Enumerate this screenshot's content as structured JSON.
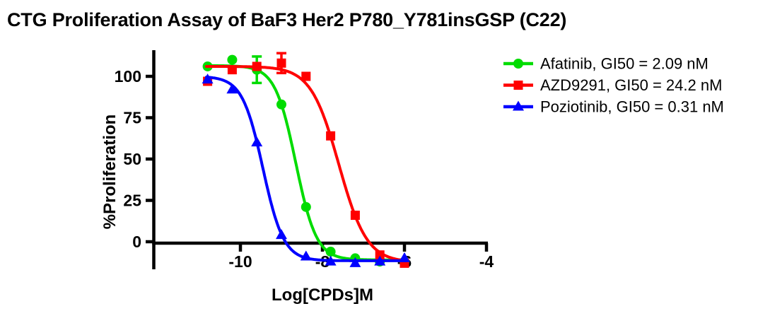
{
  "page": {
    "background": "#ffffff",
    "text_color": "#000000"
  },
  "chart_data": {
    "type": "line",
    "title": "CTG Proliferation Assay of BaF3 Her2 P780_Y781insGSP (C22)",
    "xlabel": "Log[CPDs]M",
    "ylabel": "%Proliferation",
    "grid": false,
    "legend_position": "top-right",
    "axis_color": "#000000",
    "xlim": [
      -12.2,
      -4
    ],
    "ylim": [
      -17,
      116
    ],
    "x_ticks": [
      "-10",
      "-8",
      "-6",
      "-4"
    ],
    "x_tick_values": [
      -10,
      -8,
      -6,
      -4
    ],
    "y_ticks": [
      "0",
      "25",
      "50",
      "75",
      "100"
    ],
    "y_tick_values": [
      0,
      25,
      50,
      75,
      100
    ],
    "x": [
      -10.8,
      -10.2,
      -9.6,
      -9.0,
      -8.4,
      -7.8,
      -7.2,
      -6.6,
      -6.0
    ],
    "series": [
      {
        "name": "Afatinib",
        "legend": "Afatinib, GI50 = 2.09 nM",
        "gi50_nM": 2.09,
        "color": "#00dc00",
        "marker": "circle",
        "values": [
          106,
          110,
          104,
          83,
          21,
          -6,
          -10,
          -12,
          -12
        ],
        "errors": [
          0,
          0,
          8,
          0,
          0,
          0,
          0,
          0,
          0
        ],
        "fit": {
          "top": 106.5,
          "bottom": -11,
          "logec50": -8.65,
          "hill": 1.72
        }
      },
      {
        "name": "AZD9291",
        "legend": "AZD9291, GI50 = 24.2 nM",
        "gi50_nM": 24.2,
        "color": "#ff0000",
        "marker": "square",
        "values": [
          97,
          104,
          106,
          108,
          100,
          64,
          16,
          -8,
          -13
        ],
        "errors": [
          0,
          0,
          0,
          6,
          0,
          0,
          0,
          0,
          0
        ],
        "fit": {
          "top": 106,
          "bottom": -12.5,
          "logec50": -7.6,
          "hill": 1.27
        }
      },
      {
        "name": "Poziotinib",
        "legend": "Poziotinib, GI50 = 0.31 nM",
        "gi50_nM": 0.31,
        "color": "#0000ff",
        "marker": "triangle",
        "values": [
          98,
          92,
          60,
          4,
          -9,
          -12,
          -13,
          -12,
          -10
        ],
        "errors": [
          0,
          0,
          0,
          0,
          0,
          0,
          0,
          0,
          0
        ],
        "fit": {
          "top": 100,
          "bottom": -11.5,
          "logec50": -9.45,
          "hill": 1.72
        }
      }
    ]
  }
}
